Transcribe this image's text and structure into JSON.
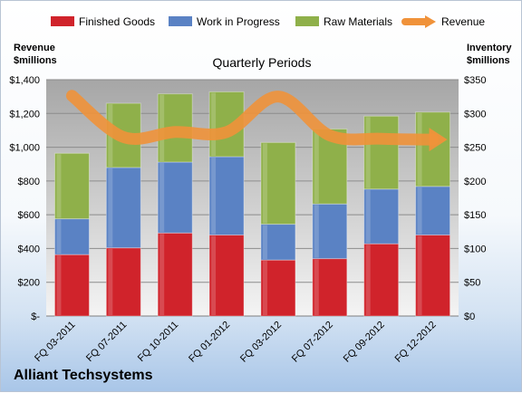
{
  "chart_data": {
    "type": "bar",
    "company": "Alliant Techsystems",
    "title": "Quarterly Periods",
    "left_axis_label": [
      "Revenue",
      "$millions"
    ],
    "right_axis_label": [
      "Inventory",
      "$millions"
    ],
    "categories": [
      "FQ 03-2011",
      "FQ 07-2011",
      "FQ 10-2011",
      "FQ 01-2012",
      "FQ 03-2012",
      "FQ 07-2012",
      "FQ 09-2012",
      "FQ 12-2012"
    ],
    "stacked": true,
    "bar_axis": "right",
    "series": [
      {
        "name": "Finished Goods",
        "color": "#d0232b",
        "values": [
          91,
          101,
          123,
          120,
          83,
          85,
          107,
          120
        ]
      },
      {
        "name": "Work in Progress",
        "color": "#5a82c4",
        "values": [
          53,
          119,
          105,
          116,
          53,
          81,
          81,
          72
        ]
      },
      {
        "name": "Raw Materials",
        "color": "#8fb04a",
        "values": [
          97,
          95,
          101,
          96,
          121,
          111,
          108,
          110
        ]
      }
    ],
    "line_series": {
      "name": "Revenue",
      "color": "#f0923a",
      "axis": "left",
      "values": [
        1305,
        1060,
        1090,
        1090,
        1300,
        1070,
        1050,
        1045
      ]
    },
    "left_ticks": [
      "$-",
      "$200",
      "$400",
      "$600",
      "$800",
      "$1,000",
      "$1,200",
      "$1,400"
    ],
    "right_ticks": [
      "$0",
      "$50",
      "$100",
      "$150",
      "$200",
      "$250",
      "$300",
      "$350"
    ],
    "left_range": [
      0,
      1400
    ],
    "right_range": [
      0,
      350
    ],
    "legend_position": "top"
  }
}
